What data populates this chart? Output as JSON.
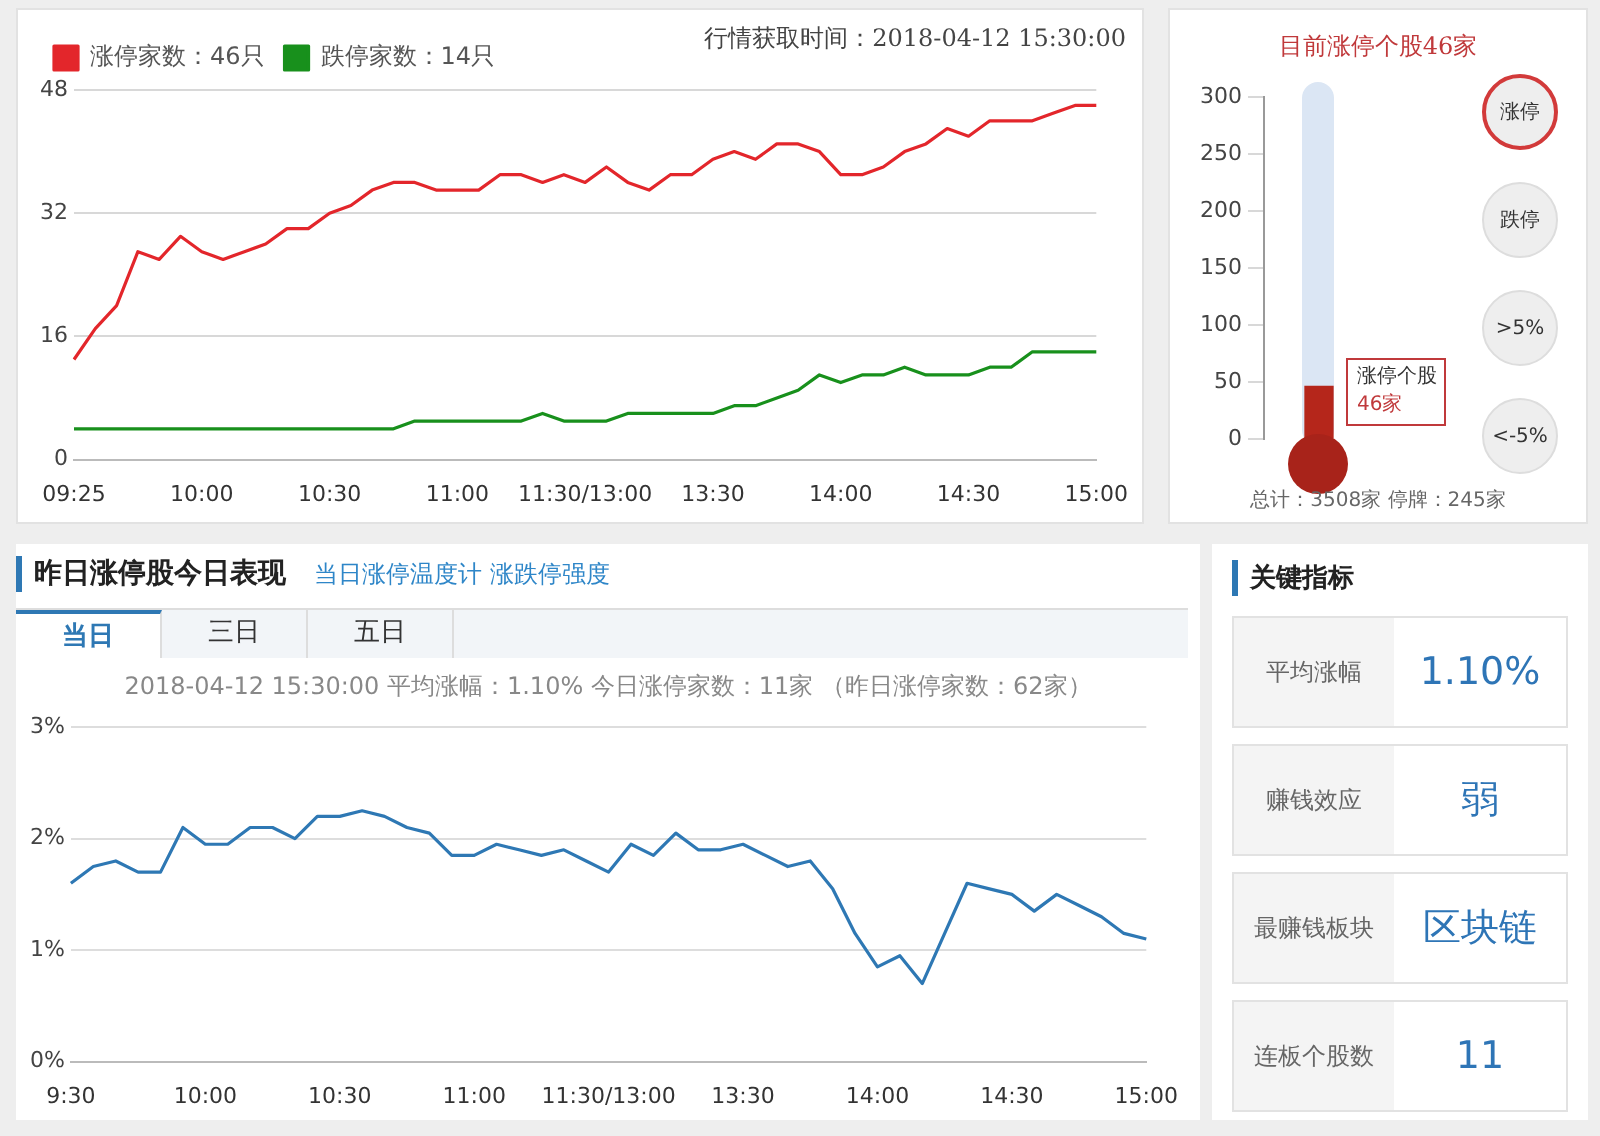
{
  "chart_data": [
    {
      "type": "line",
      "categories": [
        "09:25",
        null,
        null,
        null,
        null,
        null,
        "10:00",
        null,
        null,
        null,
        null,
        null,
        "10:30",
        null,
        null,
        null,
        null,
        null,
        "11:00",
        null,
        null,
        null,
        null,
        null,
        "11:30/13:00",
        null,
        null,
        null,
        null,
        null,
        "13:30",
        null,
        null,
        null,
        null,
        null,
        "14:00",
        null,
        null,
        null,
        null,
        null,
        "14:30",
        null,
        null,
        null,
        null,
        null,
        "15:00"
      ],
      "series": [
        {
          "name": "涨停家数：46只",
          "color": "#e3262b",
          "values": [
            13,
            17,
            20,
            27,
            26,
            29,
            27,
            26,
            27,
            28,
            30,
            30,
            32,
            33,
            35,
            36,
            36,
            35,
            35,
            35,
            37,
            37,
            36,
            37,
            36,
            38,
            36,
            35,
            37,
            37,
            39,
            40,
            39,
            41,
            41,
            40,
            37,
            37,
            38,
            40,
            41,
            43,
            42,
            44,
            44,
            44,
            45,
            46,
            46
          ]
        },
        {
          "name": "跌停家数：14只",
          "color": "#18901c",
          "values": [
            4,
            4,
            4,
            4,
            4,
            4,
            4,
            4,
            4,
            4,
            4,
            4,
            4,
            4,
            4,
            4,
            5,
            5,
            5,
            5,
            5,
            5,
            6,
            5,
            5,
            5,
            6,
            6,
            6,
            6,
            6,
            7,
            7,
            8,
            9,
            11,
            10,
            11,
            11,
            12,
            11,
            11,
            11,
            12,
            12,
            14,
            14,
            14,
            14
          ]
        }
      ],
      "ylim": [
        0,
        48
      ],
      "yticks": [
        0,
        16,
        32,
        48
      ],
      "grid": "y",
      "legend": "top left",
      "marker": "none",
      "annotations": [
        "行情获取时间：2018-04-12 15:30:00"
      ]
    },
    {
      "type": "bar",
      "title": "目前涨停个股46家",
      "categories": [
        null
      ],
      "values": [
        46
      ],
      "color": "#b5261b",
      "ylim": [
        0,
        300
      ],
      "yticks": [
        0,
        50,
        100,
        150,
        200,
        250,
        300
      ],
      "annotations": [
        "涨停个股",
        "46家",
        "涨停",
        "跌停",
        ">5%",
        "<-5%",
        "总计：3508家  停牌：245家"
      ]
    },
    {
      "type": "line",
      "title": "昨日涨停股今日表现",
      "subtitle": "当日涨停温度计 涨跌停强度",
      "categories": [
        "9:30",
        null,
        null,
        null,
        null,
        null,
        "10:00",
        null,
        null,
        null,
        null,
        null,
        "10:30",
        null,
        null,
        null,
        null,
        null,
        "11:00",
        null,
        null,
        null,
        null,
        null,
        "11:30/13:00",
        null,
        null,
        null,
        null,
        null,
        "13:30",
        null,
        null,
        null,
        null,
        null,
        "14:00",
        null,
        null,
        null,
        null,
        null,
        "14:30",
        null,
        null,
        null,
        null,
        null,
        "15:00"
      ],
      "series": [
        {
          "color": "#2e78b4",
          "values": [
            1.6,
            1.75,
            1.8,
            1.7,
            1.7,
            2.1,
            1.95,
            1.95,
            2.1,
            2.1,
            2.0,
            2.2,
            2.2,
            2.25,
            2.2,
            2.1,
            2.05,
            1.85,
            1.85,
            1.95,
            1.9,
            1.85,
            1.9,
            1.8,
            1.7,
            1.95,
            1.85,
            2.05,
            1.9,
            1.9,
            1.95,
            1.85,
            1.75,
            1.8,
            1.55,
            1.15,
            0.85,
            0.95,
            0.7,
            1.15,
            1.6,
            1.55,
            1.5,
            1.35,
            1.5,
            1.4,
            1.3,
            1.15,
            1.1
          ]
        }
      ],
      "ylim": [
        0,
        3
      ],
      "yticks": [
        {
          "value": 0,
          "label": "0%"
        },
        {
          "value": 1,
          "label": "1%"
        },
        {
          "value": 2,
          "label": "2%"
        },
        {
          "value": 3,
          "label": "3%"
        }
      ],
      "grid": "y",
      "marker": "none",
      "annotations": [
        "当日",
        "三日",
        "五日",
        "2018-04-12 15:30:00   平均涨幅：1.10%   今日涨停家数：11家   （昨日涨停家数：62家）"
      ]
    },
    {
      "type": "other",
      "title": "关键指标",
      "categories": [
        "平均涨幅",
        "赚钱效应",
        "最赚钱板块",
        "连板个股数"
      ],
      "value_labels": [
        "1.10%",
        "弱",
        "区块链",
        "11"
      ]
    }
  ]
}
